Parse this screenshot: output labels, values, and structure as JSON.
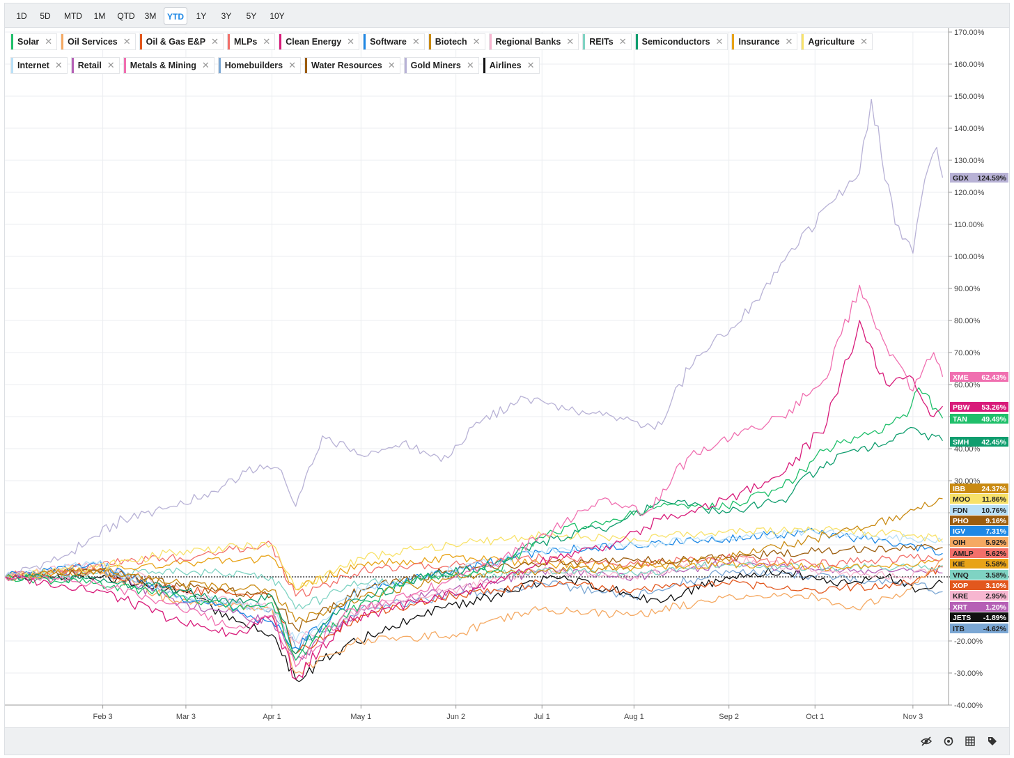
{
  "toolbar": {
    "ranges": [
      "1D",
      "5D",
      "MTD",
      "1M",
      "QTD",
      "3M",
      "YTD",
      "1Y",
      "3Y",
      "5Y",
      "10Y"
    ],
    "active": "YTD"
  },
  "legend": [
    {
      "label": "Solar",
      "color": "#1fbf6a"
    },
    {
      "label": "Oil Services",
      "color": "#f5a962"
    },
    {
      "label": "Oil & Gas E&P",
      "color": "#e2571d"
    },
    {
      "label": "MLPs",
      "color": "#f2706a"
    },
    {
      "label": "Clean Energy",
      "color": "#d81b7a"
    },
    {
      "label": "Software",
      "color": "#1e88e5"
    },
    {
      "label": "Biotech",
      "color": "#c98a12"
    },
    {
      "label": "Regional Banks",
      "color": "#f7b6d0"
    },
    {
      "label": "REITs",
      "color": "#7fd3c3"
    },
    {
      "label": "Semiconductors",
      "color": "#0f9d6e"
    },
    {
      "label": "Insurance",
      "color": "#e8a317"
    },
    {
      "label": "Agriculture",
      "color": "#f8e26a"
    },
    {
      "label": "Internet",
      "color": "#b9e0f7"
    },
    {
      "label": "Retail",
      "color": "#b560b5"
    },
    {
      "label": "Metals & Mining",
      "color": "#f06fb0"
    },
    {
      "label": "Homebuilders",
      "color": "#7ba7d4"
    },
    {
      "label": "Water Resources",
      "color": "#9c5d0e"
    },
    {
      "label": "Gold Miners",
      "color": "#b8b2d6"
    },
    {
      "label": "Airlines",
      "color": "#111111"
    }
  ],
  "footer_icons": [
    "eye-slash-icon",
    "refresh-icon",
    "grid-icon",
    "tag-icon"
  ],
  "chart_data": {
    "type": "line",
    "y_unit": "%",
    "ylim": [
      -40,
      170
    ],
    "yticks": [
      170,
      160,
      150,
      140,
      130,
      120,
      110,
      100,
      90,
      80,
      70,
      60,
      50,
      40,
      30,
      20,
      10,
      0,
      -10,
      -20,
      -30,
      -40
    ],
    "ytick_labels": [
      "170.00%",
      "160.00%",
      "150.00%",
      "140.00%",
      "130.00%",
      "120.00%",
      "110.00%",
      "100.00%",
      "90.00%",
      "80.00%",
      "70.00%",
      "60.00%",
      "",
      "40.00%",
      "30.00%",
      "",
      "",
      "",
      "",
      "-20.00%",
      "-30.00%",
      "-40.00%"
    ],
    "xlim": [
      "2025-01-01",
      "2025-11-15"
    ],
    "xticks": [
      {
        "date": "2025-02-03",
        "label": "Feb 3"
      },
      {
        "date": "2025-03-03",
        "label": "Mar 3"
      },
      {
        "date": "2025-04-01",
        "label": "Apr 1"
      },
      {
        "date": "2025-05-01",
        "label": "May 1"
      },
      {
        "date": "2025-06-02",
        "label": "Jun 2"
      },
      {
        "date": "2025-07-01",
        "label": "Jul 1"
      },
      {
        "date": "2025-08-01",
        "label": "Aug 1"
      },
      {
        "date": "2025-09-02",
        "label": "Sep 2"
      },
      {
        "date": "2025-10-01",
        "label": "Oct 1"
      },
      {
        "date": "2025-11-03",
        "label": "Nov 3"
      }
    ],
    "grid": true,
    "baseline": 0,
    "legend_position": "top-left",
    "series": [
      {
        "name": "Gold Miners",
        "ticker": "GDX",
        "final": "124.59%",
        "color": "#b8b2d6",
        "label_text": "#222",
        "x": [
          "2025-01-01",
          "2025-01-20",
          "2025-02-10",
          "2025-02-28",
          "2025-03-15",
          "2025-03-28",
          "2025-04-03",
          "2025-04-09",
          "2025-04-18",
          "2025-05-01",
          "2025-05-15",
          "2025-05-28",
          "2025-06-10",
          "2025-06-25",
          "2025-07-10",
          "2025-07-25",
          "2025-08-08",
          "2025-08-22",
          "2025-09-05",
          "2025-09-22",
          "2025-10-08",
          "2025-10-16",
          "2025-10-20",
          "2025-10-28",
          "2025-11-03",
          "2025-11-07",
          "2025-11-11",
          "2025-11-13"
        ],
        "y": [
          0,
          6,
          18,
          22,
          28,
          35,
          34,
          22,
          44,
          38,
          42,
          36,
          48,
          56,
          52,
          50,
          46,
          69,
          79,
          101,
          118,
          126,
          149,
          110,
          101,
          124,
          134,
          124.59
        ]
      },
      {
        "name": "Metals & Mining",
        "ticker": "XME",
        "final": "62.43%",
        "color": "#f06fb0",
        "label_text": "#fff",
        "x": [
          "2025-01-01",
          "2025-02-01",
          "2025-03-01",
          "2025-03-20",
          "2025-04-01",
          "2025-04-09",
          "2025-04-25",
          "2025-05-20",
          "2025-06-15",
          "2025-07-05",
          "2025-07-20",
          "2025-08-05",
          "2025-08-20",
          "2025-09-05",
          "2025-09-20",
          "2025-10-05",
          "2025-10-16",
          "2025-10-25",
          "2025-11-03",
          "2025-11-10",
          "2025-11-13"
        ],
        "y": [
          0,
          -2,
          -10,
          -16,
          -12,
          -28,
          -12,
          -5,
          4,
          15,
          24,
          20,
          38,
          44,
          50,
          62,
          91,
          72,
          58,
          70,
          62.43
        ]
      },
      {
        "name": "Clean Energy",
        "ticker": "PBW",
        "final": "53.26%",
        "color": "#d81b7a",
        "label_text": "#fff",
        "x": [
          "2025-01-01",
          "2025-02-01",
          "2025-03-01",
          "2025-03-20",
          "2025-04-01",
          "2025-04-09",
          "2025-04-25",
          "2025-05-20",
          "2025-06-15",
          "2025-07-05",
          "2025-07-25",
          "2025-08-10",
          "2025-09-01",
          "2025-09-20",
          "2025-10-05",
          "2025-10-16",
          "2025-10-25",
          "2025-11-03",
          "2025-11-10",
          "2025-11-13"
        ],
        "y": [
          0,
          -4,
          -14,
          -18,
          -12,
          -32,
          -14,
          -8,
          -2,
          6,
          10,
          18,
          24,
          32,
          48,
          80,
          60,
          62,
          50,
          53.26
        ]
      },
      {
        "name": "Solar",
        "ticker": "TAN",
        "final": "49.49%",
        "color": "#1fbf6a",
        "label_text": "#fff",
        "x": [
          "2025-01-01",
          "2025-02-01",
          "2025-03-01",
          "2025-03-20",
          "2025-04-01",
          "2025-04-09",
          "2025-04-25",
          "2025-05-20",
          "2025-06-15",
          "2025-07-05",
          "2025-07-25",
          "2025-08-10",
          "2025-09-01",
          "2025-09-20",
          "2025-10-05",
          "2025-10-20",
          "2025-11-01",
          "2025-11-05",
          "2025-11-13"
        ],
        "y": [
          0,
          -2,
          -6,
          -10,
          -8,
          -26,
          -12,
          0,
          2,
          14,
          18,
          22,
          22,
          28,
          40,
          45,
          50,
          59,
          49.49
        ]
      },
      {
        "name": "Semiconductors",
        "ticker": "SMH",
        "final": "42.45%",
        "color": "#0f9d6e",
        "label_text": "#fff",
        "x": [
          "2025-01-01",
          "2025-02-01",
          "2025-03-01",
          "2025-03-20",
          "2025-04-01",
          "2025-04-09",
          "2025-04-25",
          "2025-05-20",
          "2025-06-15",
          "2025-07-05",
          "2025-07-25",
          "2025-08-10",
          "2025-09-01",
          "2025-09-20",
          "2025-10-05",
          "2025-10-20",
          "2025-11-01",
          "2025-11-13"
        ],
        "y": [
          0,
          -1,
          -4,
          -8,
          -6,
          -24,
          -10,
          0,
          4,
          12,
          16,
          24,
          20,
          24,
          36,
          40,
          46,
          42.45
        ]
      },
      {
        "name": "Biotech",
        "ticker": "IBB",
        "final": "24.37%",
        "color": "#c98a12",
        "label_text": "#fff",
        "x": [
          "2025-01-01",
          "2025-02-01",
          "2025-03-01",
          "2025-04-01",
          "2025-04-09",
          "2025-05-01",
          "2025-06-01",
          "2025-07-01",
          "2025-08-01",
          "2025-09-01",
          "2025-10-01",
          "2025-10-20",
          "2025-11-01",
          "2025-11-13"
        ],
        "y": [
          0,
          2,
          -2,
          -4,
          -14,
          -6,
          0,
          2,
          3,
          6,
          12,
          16,
          20,
          24.37
        ]
      },
      {
        "name": "Agriculture",
        "ticker": "MOO",
        "final": "11.86%",
        "color": "#f8e26a",
        "label_text": "#222",
        "x": [
          "2025-01-01",
          "2025-02-01",
          "2025-03-01",
          "2025-04-01",
          "2025-04-09",
          "2025-05-01",
          "2025-06-01",
          "2025-07-01",
          "2025-08-01",
          "2025-09-01",
          "2025-10-01",
          "2025-11-01",
          "2025-11-13"
        ],
        "y": [
          0,
          3,
          8,
          10,
          -4,
          6,
          10,
          13,
          12,
          14,
          15,
          13,
          11.86
        ]
      },
      {
        "name": "Internet",
        "ticker": "FDN",
        "final": "10.76%",
        "color": "#b9e0f7",
        "label_text": "#222",
        "x": [
          "2025-01-01",
          "2025-02-01",
          "2025-03-01",
          "2025-04-01",
          "2025-04-09",
          "2025-05-01",
          "2025-06-01",
          "2025-07-01",
          "2025-08-01",
          "2025-09-01",
          "2025-10-01",
          "2025-11-01",
          "2025-11-13"
        ],
        "y": [
          0,
          4,
          -6,
          -10,
          -20,
          -4,
          2,
          8,
          10,
          12,
          14,
          12,
          10.76
        ]
      },
      {
        "name": "Water Resources",
        "ticker": "PHO",
        "final": "9.16%",
        "color": "#9c5d0e",
        "label_text": "#fff",
        "x": [
          "2025-01-01",
          "2025-02-01",
          "2025-03-01",
          "2025-04-01",
          "2025-04-09",
          "2025-05-01",
          "2025-06-01",
          "2025-07-01",
          "2025-08-01",
          "2025-09-01",
          "2025-10-01",
          "2025-11-01",
          "2025-11-13"
        ],
        "y": [
          0,
          2,
          -3,
          -6,
          -16,
          -4,
          2,
          4,
          5,
          6,
          8,
          9,
          9.16
        ]
      },
      {
        "name": "Software",
        "ticker": "IGV",
        "final": "7.31%",
        "color": "#1e88e5",
        "label_text": "#fff",
        "x": [
          "2025-01-01",
          "2025-02-01",
          "2025-03-01",
          "2025-04-01",
          "2025-04-09",
          "2025-05-01",
          "2025-06-01",
          "2025-07-01",
          "2025-08-01",
          "2025-09-01",
          "2025-10-01",
          "2025-11-01",
          "2025-11-13"
        ],
        "y": [
          0,
          4,
          -6,
          -14,
          -22,
          -4,
          2,
          8,
          10,
          12,
          14,
          10,
          7.31
        ]
      },
      {
        "name": "Oil Services",
        "ticker": "OIH",
        "final": "5.92%",
        "color": "#f5a962",
        "label_text": "#222",
        "x": [
          "2025-01-01",
          "2025-02-01",
          "2025-03-01",
          "2025-04-01",
          "2025-04-09",
          "2025-05-01",
          "2025-06-01",
          "2025-07-01",
          "2025-08-01",
          "2025-09-01",
          "2025-10-01",
          "2025-10-15",
          "2025-11-01",
          "2025-11-13"
        ],
        "y": [
          0,
          2,
          -8,
          -10,
          -30,
          -20,
          -18,
          -10,
          -12,
          -6,
          -6,
          -10,
          -4,
          5.92
        ]
      },
      {
        "name": "MLPs",
        "ticker": "AMLP",
        "final": "5.62%",
        "color": "#f2706a",
        "label_text": "#222",
        "x": [
          "2025-01-01",
          "2025-02-01",
          "2025-03-01",
          "2025-04-01",
          "2025-04-09",
          "2025-05-01",
          "2025-06-01",
          "2025-07-01",
          "2025-08-01",
          "2025-09-01",
          "2025-10-01",
          "2025-11-01",
          "2025-11-13"
        ],
        "y": [
          0,
          4,
          6,
          10,
          -6,
          2,
          4,
          6,
          4,
          6,
          4,
          6,
          5.62
        ]
      },
      {
        "name": "Insurance",
        "ticker": "KIE",
        "final": "5.58%",
        "color": "#e8a317",
        "label_text": "#222",
        "x": [
          "2025-01-01",
          "2025-02-01",
          "2025-03-01",
          "2025-04-01",
          "2025-04-09",
          "2025-05-01",
          "2025-06-01",
          "2025-07-01",
          "2025-08-01",
          "2025-09-01",
          "2025-10-01",
          "2025-11-01",
          "2025-11-13"
        ],
        "y": [
          0,
          2,
          4,
          6,
          -4,
          4,
          6,
          4,
          3,
          4,
          3,
          4,
          5.58
        ]
      },
      {
        "name": "REITs",
        "ticker": "VNQ",
        "final": "3.58%",
        "color": "#7fd3c3",
        "label_text": "#222",
        "x": [
          "2025-01-01",
          "2025-02-01",
          "2025-03-01",
          "2025-04-01",
          "2025-04-09",
          "2025-05-01",
          "2025-06-01",
          "2025-07-01",
          "2025-08-01",
          "2025-09-01",
          "2025-10-01",
          "2025-11-01",
          "2025-11-13"
        ],
        "y": [
          0,
          1,
          2,
          0,
          -10,
          -2,
          0,
          2,
          1,
          4,
          3,
          3,
          3.58
        ]
      },
      {
        "name": "Oil & Gas E&P",
        "ticker": "XOP",
        "final": "3.10%",
        "color": "#e2571d",
        "label_text": "#fff",
        "x": [
          "2025-01-01",
          "2025-02-01",
          "2025-03-01",
          "2025-04-01",
          "2025-04-09",
          "2025-05-01",
          "2025-06-01",
          "2025-07-01",
          "2025-08-01",
          "2025-09-01",
          "2025-10-01",
          "2025-11-01",
          "2025-11-13"
        ],
        "y": [
          0,
          2,
          -4,
          -6,
          -24,
          -12,
          -6,
          -2,
          -4,
          -2,
          -4,
          -2,
          3.1
        ]
      },
      {
        "name": "Regional Banks",
        "ticker": "KRE",
        "final": "2.95%",
        "color": "#f7b6d0",
        "label_text": "#222",
        "x": [
          "2025-01-01",
          "2025-02-01",
          "2025-03-01",
          "2025-04-01",
          "2025-04-09",
          "2025-05-01",
          "2025-06-01",
          "2025-07-01",
          "2025-08-01",
          "2025-09-01",
          "2025-10-01",
          "2025-11-01",
          "2025-11-13"
        ],
        "y": [
          0,
          4,
          -4,
          -10,
          -20,
          -10,
          -4,
          2,
          0,
          6,
          2,
          0,
          2.95
        ]
      },
      {
        "name": "Retail",
        "ticker": "XRT",
        "final": "1.20%",
        "color": "#b560b5",
        "label_text": "#fff",
        "x": [
          "2025-01-01",
          "2025-02-01",
          "2025-03-01",
          "2025-04-01",
          "2025-04-09",
          "2025-05-01",
          "2025-06-01",
          "2025-07-01",
          "2025-08-01",
          "2025-09-01",
          "2025-10-01",
          "2025-11-01",
          "2025-11-13"
        ],
        "y": [
          0,
          2,
          -8,
          -14,
          -26,
          -10,
          -4,
          2,
          0,
          4,
          2,
          2,
          1.2
        ]
      },
      {
        "name": "Airlines",
        "ticker": "JETS",
        "final": "-1.89%",
        "color": "#111111",
        "label_text": "#fff",
        "x": [
          "2025-01-01",
          "2025-02-01",
          "2025-03-01",
          "2025-03-20",
          "2025-04-01",
          "2025-04-09",
          "2025-04-25",
          "2025-05-20",
          "2025-06-15",
          "2025-07-05",
          "2025-07-25",
          "2025-08-10",
          "2025-09-01",
          "2025-09-20",
          "2025-10-05",
          "2025-10-25",
          "2025-11-05",
          "2025-11-13"
        ],
        "y": [
          0,
          0,
          -4,
          -14,
          -18,
          -32,
          -22,
          -12,
          -6,
          0,
          -4,
          -8,
          0,
          2,
          -2,
          0,
          -4,
          -1.89
        ]
      },
      {
        "name": "Homebuilders",
        "ticker": "ITB",
        "final": "-4.62%",
        "color": "#7ba7d4",
        "label_text": "#222",
        "x": [
          "2025-01-01",
          "2025-02-01",
          "2025-03-01",
          "2025-04-01",
          "2025-04-09",
          "2025-05-01",
          "2025-06-01",
          "2025-07-01",
          "2025-08-01",
          "2025-09-01",
          "2025-10-01",
          "2025-11-01",
          "2025-11-13"
        ],
        "y": [
          0,
          2,
          -6,
          -10,
          -22,
          -10,
          -6,
          -2,
          -6,
          2,
          0,
          -2,
          -4.62
        ]
      }
    ]
  }
}
